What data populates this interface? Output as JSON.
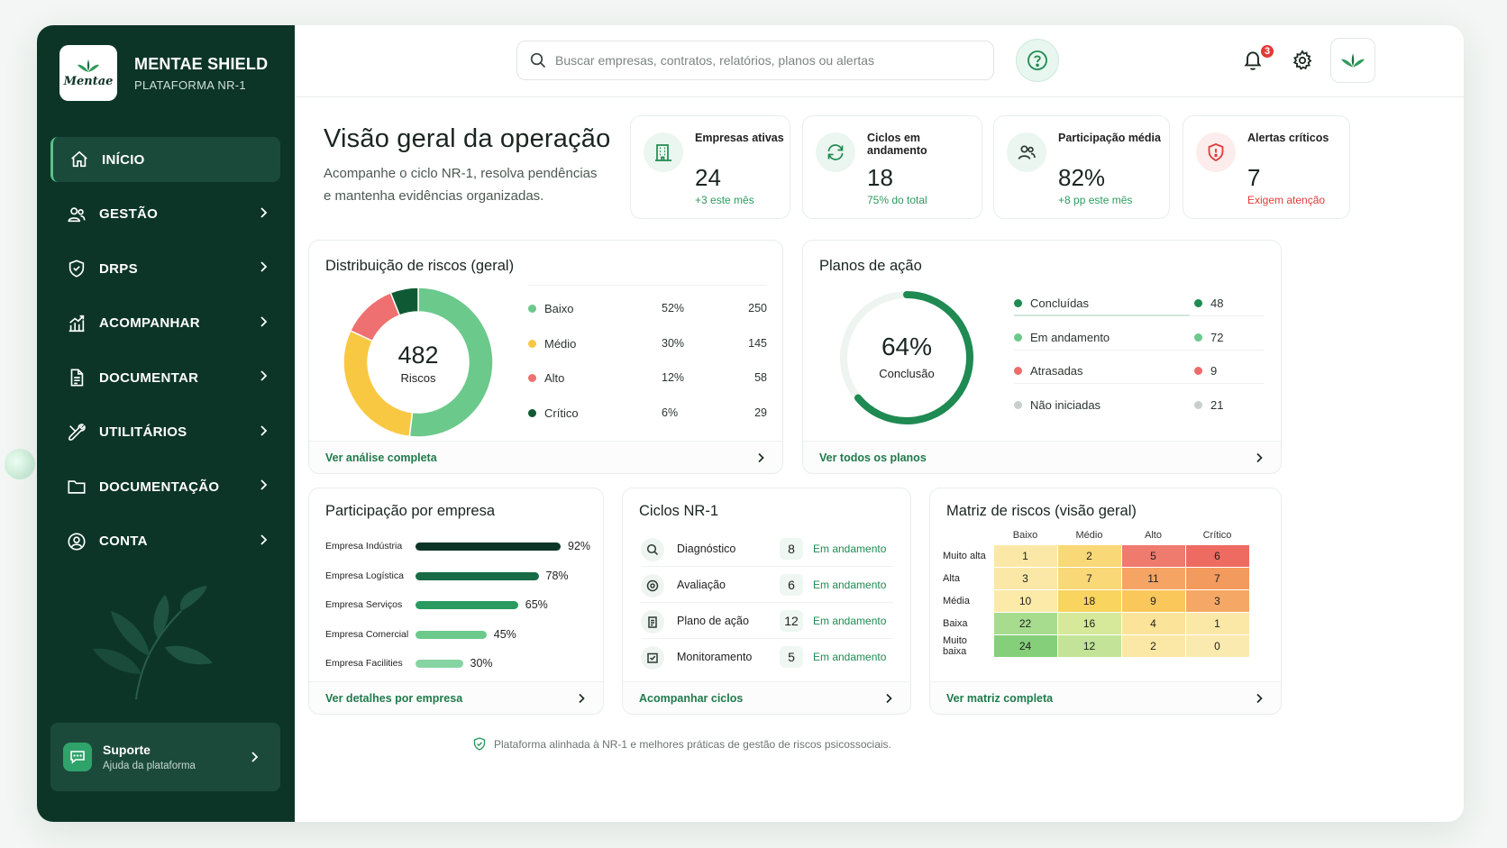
{
  "brand": {
    "title": "MENTAE SHIELD",
    "subtitle": "PLATAFORMA NR-1",
    "logo_text": "Mentae"
  },
  "nav": [
    {
      "label": "INÍCIO",
      "icon": "home-icon"
    },
    {
      "label": "GESTÃO",
      "icon": "users-icon"
    },
    {
      "label": "DRPS",
      "icon": "shield-icon"
    },
    {
      "label": "ACOMPANHAR",
      "icon": "chart-icon"
    },
    {
      "label": "DOCUMENTAR",
      "icon": "document-icon"
    },
    {
      "label": "UTILITÁRIOS",
      "icon": "tools-icon"
    },
    {
      "label": "DOCUMENTAÇÃO",
      "icon": "folder-icon"
    },
    {
      "label": "CONTA",
      "icon": "user-circle-icon"
    }
  ],
  "support": {
    "title": "Suporte",
    "subtitle": "Ajuda da plataforma"
  },
  "search": {
    "placeholder": "Buscar empresas, contratos, relatórios, planos ou alertas"
  },
  "notifications": {
    "count": "3"
  },
  "page": {
    "title": "Visão geral da operação",
    "subtitle": "Acompanhe o ciclo NR-1, resolva pendências e mantenha evidências organizadas."
  },
  "kpis": [
    {
      "label": "Empresas ativas",
      "value": "24",
      "sub": "+3 este mês",
      "icon": "building-icon"
    },
    {
      "label": "Ciclos em andamento",
      "value": "18",
      "sub": "75% do total",
      "icon": "refresh-icon"
    },
    {
      "label": "Participação média",
      "value": "82%",
      "sub": "+8 pp este mês",
      "icon": "people-icon"
    },
    {
      "label": "Alertas críticos",
      "value": "7",
      "sub": "Exigem atenção",
      "icon": "alert-shield-icon"
    }
  ],
  "risk_dist": {
    "title": "Distribuição de riscos (geral)",
    "total": "482",
    "total_label": "Riscos",
    "items": [
      {
        "label": "Baixo",
        "pct": "52%",
        "count": "250",
        "color": "#6cc98c"
      },
      {
        "label": "Médio",
        "pct": "30%",
        "count": "145",
        "color": "#f9c843"
      },
      {
        "label": "Alto",
        "pct": "12%",
        "count": "58",
        "color": "#ee7070"
      },
      {
        "label": "Crítico",
        "pct": "6%",
        "count": "29",
        "color": "#0f5a34"
      }
    ],
    "footer": "Ver análise completa"
  },
  "action_plans": {
    "title": "Planos de ação",
    "percent": "64%",
    "percent_label": "Conclusão",
    "progress": 0.64,
    "items": [
      {
        "label": "Concluídas",
        "count": "48",
        "color": "#1f8a52"
      },
      {
        "label": "Em andamento",
        "count": "72",
        "color": "#6cc98c"
      },
      {
        "label": "Atrasadas",
        "count": "9",
        "color": "#ee6b6b"
      },
      {
        "label": "Não iniciadas",
        "count": "21",
        "color": "#c9cfcc"
      }
    ],
    "footer": "Ver todos os planos"
  },
  "participation": {
    "title": "Participação por empresa",
    "items": [
      {
        "name": "Empresa Indústria",
        "value": 92,
        "label": "92%",
        "color": "#0c3528"
      },
      {
        "name": "Empresa Logística",
        "value": 78,
        "label": "78%",
        "color": "#176b45"
      },
      {
        "name": "Empresa Serviços",
        "value": 65,
        "label": "65%",
        "color": "#2b9a60"
      },
      {
        "name": "Empresa Comercial",
        "value": 45,
        "label": "45%",
        "color": "#6cc98c"
      },
      {
        "name": "Empresa Facilities",
        "value": 30,
        "label": "30%",
        "color": "#86d4a2"
      }
    ],
    "footer": "Ver detalhes por empresa"
  },
  "cycles": {
    "title": "Ciclos NR-1",
    "items": [
      {
        "name": "Diagnóstico",
        "count": "8",
        "status": "Em andamento",
        "icon": "search-icon"
      },
      {
        "name": "Avaliação",
        "count": "6",
        "status": "Em andamento",
        "icon": "target-icon"
      },
      {
        "name": "Plano de ação",
        "count": "12",
        "status": "Em andamento",
        "icon": "clipboard-icon"
      },
      {
        "name": "Monitoramento",
        "count": "5",
        "status": "Em andamento",
        "icon": "monitor-icon"
      }
    ],
    "footer": "Acompanhar ciclos"
  },
  "matrix": {
    "title": "Matriz de riscos (visão geral)",
    "cols": [
      "Baixo",
      "Médio",
      "Alto",
      "Crítico"
    ],
    "rows": [
      {
        "label": "Muito alta",
        "values": [
          "1",
          "2",
          "5",
          "6"
        ],
        "colors": [
          "#fbe8a6",
          "#f9d877",
          "#ef7a6e",
          "#ee6b62"
        ]
      },
      {
        "label": "Alta",
        "values": [
          "3",
          "7",
          "11",
          "7"
        ],
        "colors": [
          "#fbe8a6",
          "#f9d877",
          "#f6a463",
          "#f39a5e"
        ]
      },
      {
        "label": "Média",
        "values": [
          "10",
          "18",
          "9",
          "3"
        ],
        "colors": [
          "#fbeaa8",
          "#f9d45e",
          "#f9c75a",
          "#f5a865"
        ]
      },
      {
        "label": "Baixa",
        "values": [
          "22",
          "16",
          "4",
          "1"
        ],
        "colors": [
          "#a7dc8f",
          "#d6e89a",
          "#fbe39a",
          "#fbe8a6"
        ]
      },
      {
        "label": "Muito baixa",
        "values": [
          "24",
          "12",
          "2",
          "0"
        ],
        "colors": [
          "#86cf7a",
          "#c3e398",
          "#fbe8a6",
          "#fbeab0"
        ]
      }
    ],
    "footer": "Ver matriz completa"
  },
  "footer_note": "Plataforma alinhada à NR-1 e melhores práticas de gestão de riscos psicossociais."
}
